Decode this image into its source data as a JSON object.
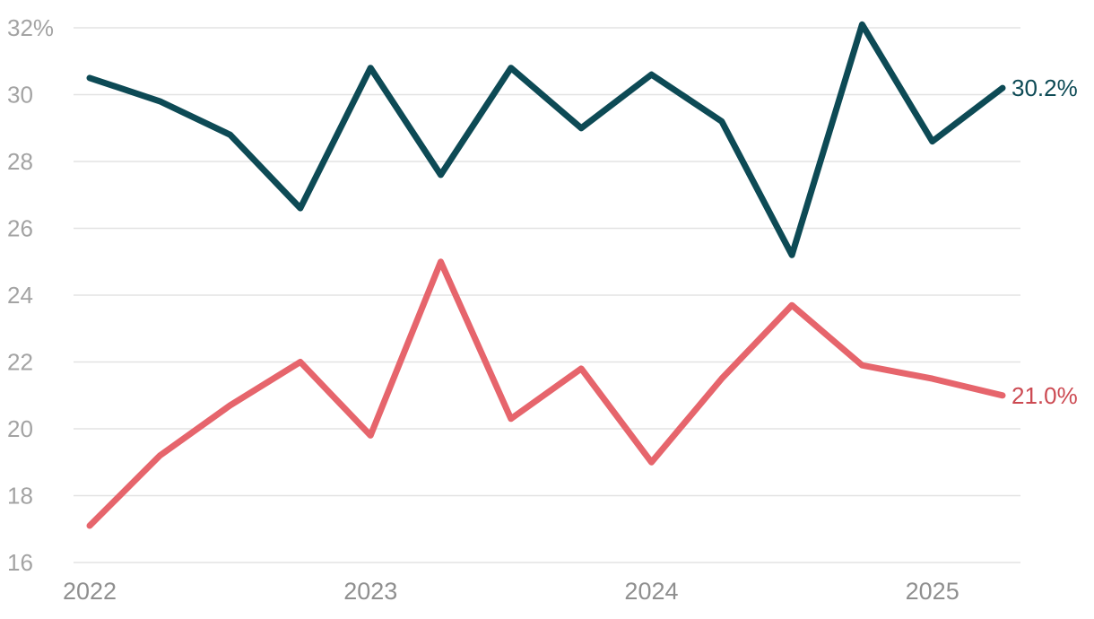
{
  "chart_data": {
    "type": "line",
    "title": "",
    "xlabel": "",
    "ylabel": "",
    "ylim": [
      16,
      32
    ],
    "xlim": [
      "2022-01",
      "2025-04"
    ],
    "grid": true,
    "legend": "none",
    "y_ticks": [
      16,
      18,
      20,
      22,
      24,
      26,
      28,
      30,
      32
    ],
    "y_tick_labels": [
      "16",
      "18",
      "20",
      "22",
      "24",
      "26",
      "28",
      "30",
      "32%"
    ],
    "x_ticks": [
      "2022-01",
      "2023-01",
      "2024-01",
      "2025-01"
    ],
    "x_tick_labels": [
      "2022",
      "2023",
      "2024",
      "2025"
    ],
    "x": [
      "2022-01",
      "2022-04",
      "2022-07",
      "2022-10",
      "2023-01",
      "2023-04",
      "2023-07",
      "2023-10",
      "2024-01",
      "2024-04",
      "2024-07",
      "2024-10",
      "2025-01",
      "2025-04"
    ],
    "series": [
      {
        "color": "#0d4a55",
        "end_label": "30.2%",
        "values": [
          30.5,
          29.8,
          28.8,
          26.6,
          30.8,
          27.6,
          30.8,
          29.0,
          30.6,
          29.2,
          25.2,
          32.1,
          28.6,
          30.2
        ]
      },
      {
        "color": "#e6656c",
        "label_color": "#cc4a52",
        "end_label": "21.0%",
        "values": [
          17.1,
          19.2,
          20.7,
          22.0,
          19.8,
          25.0,
          20.3,
          21.8,
          19.0,
          21.5,
          23.7,
          21.9,
          21.5,
          21.0
        ]
      }
    ]
  }
}
